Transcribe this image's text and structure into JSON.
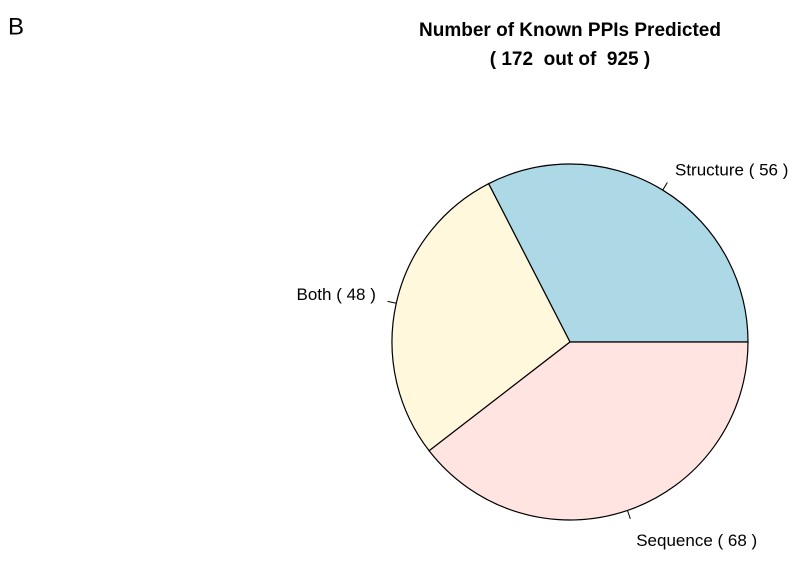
{
  "panel_label": "B",
  "chart_data": {
    "type": "pie",
    "title": "Number of Known PPIs Predicted",
    "subtitle": "( 172  out of  925 )",
    "values": [
      56,
      48,
      68
    ],
    "value_labels": [
      "Structure ( 56 )",
      "Both ( 48 )",
      "Sequence ( 68 )"
    ],
    "colors": [
      "#add8e6",
      "#fff8dc",
      "#ffe4e1"
    ]
  }
}
